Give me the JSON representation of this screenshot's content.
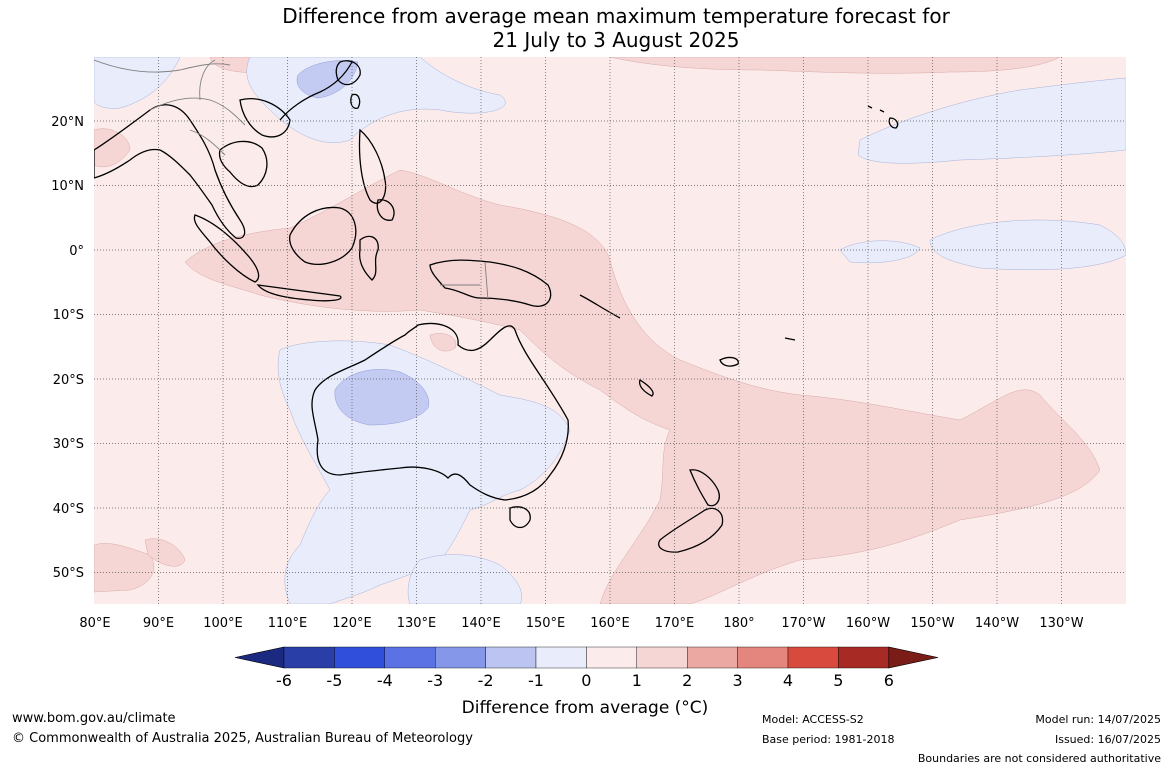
{
  "title": {
    "line1": "Difference from average mean maximum temperature forecast for",
    "line2": "21 July to 3 August 2025"
  },
  "map": {
    "lon_labels": [
      "80°E",
      "90°E",
      "100°E",
      "110°E",
      "120°E",
      "130°E",
      "140°E",
      "150°E",
      "160°E",
      "170°E",
      "180°",
      "170°W",
      "160°W",
      "150°W",
      "140°W",
      "130°W"
    ],
    "lat_labels": [
      "20°N",
      "10°N",
      "0°",
      "10°S",
      "20°S",
      "30°S",
      "40°S",
      "50°S"
    ],
    "extent": {
      "lon_min": 80,
      "lon_max": 240,
      "lat_min": -55,
      "lat_max": 30
    },
    "grid": true,
    "colors": {
      "near_zero_pos": "#fbeceb",
      "pos_1_2": "#f5d6d5",
      "neg_0_1": "#e8ecfb",
      "neg_1_2": "#c4cbf3",
      "land_outline": "#000000",
      "border": "#808080",
      "gridline": "#555555"
    }
  },
  "colorbar": {
    "label": "Difference from average (°C)",
    "ticks": [
      "-6",
      "-5",
      "-4",
      "-3",
      "-2",
      "-1",
      "0",
      "1",
      "2",
      "3",
      "4",
      "5",
      "6"
    ],
    "colors": [
      "#1b2a80",
      "#2a3ea8",
      "#3050dc",
      "#5b72e4",
      "#8497e8",
      "#bcc5f2",
      "#e8ecfb",
      "#fbeceb",
      "#f5d6d5",
      "#eba8a3",
      "#e4857e",
      "#d84a3e",
      "#a82a24",
      "#7a1c18"
    ]
  },
  "footer": {
    "website": "www.bom.gov.au/climate",
    "copyright": "© Commonwealth of Australia 2025, Australian Bureau of Meteorology",
    "model": "Model: ACCESS-S2",
    "base_period": "Base period: 1981-2018",
    "model_run": "Model run: 14/07/2025",
    "issued": "Issued: 16/07/2025",
    "boundaries": "Boundaries are not considered authoritative"
  }
}
